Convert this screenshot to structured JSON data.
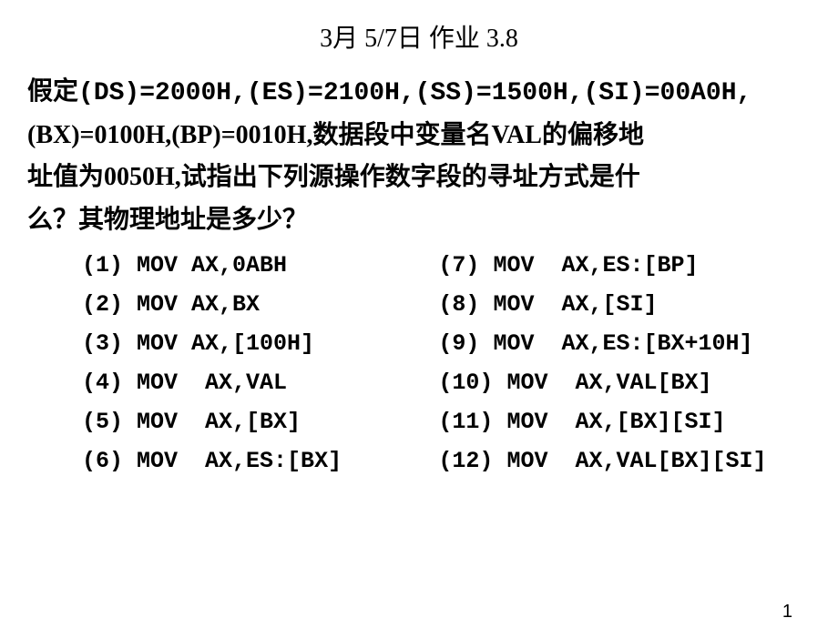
{
  "title": "3月 5/7日 作业 3.8",
  "problem": {
    "line1_prefix": "假定",
    "regs": "(DS)=2000H,(ES)=2100H,(SS)=1500H,(SI)=00A0H,",
    "line2": "(BX)=0100H,(BP)=0010H,数据段中变量名VAL的偏移地",
    "line3": "址值为0050H,试指出下列源操作数字段的寻址方式是什",
    "line4": "么？其物理地址是多少？"
  },
  "questions": [
    {
      "n": "(1)",
      "text": "MOV AX,0ABH"
    },
    {
      "n": "(2)",
      "text": "MOV AX,BX"
    },
    {
      "n": "(3)",
      "text": "MOV AX,[100H]"
    },
    {
      "n": "(4)",
      "text": "MOV  AX,VAL"
    },
    {
      "n": "(5)",
      "text": "MOV  AX,[BX]"
    },
    {
      "n": "(6)",
      "text": "MOV  AX,ES:[BX]"
    },
    {
      "n": "(7)",
      "text": "MOV  AX,ES:[BP]"
    },
    {
      "n": "(8)",
      "text": "MOV  AX,[SI]"
    },
    {
      "n": "(9)",
      "text": "MOV  AX,ES:[BX+10H]"
    },
    {
      "n": "(10)",
      "text": "MOV  AX,VAL[BX]"
    },
    {
      "n": "(11)",
      "text": "MOV  AX,[BX][SI]"
    },
    {
      "n": "(12)",
      "text": "MOV  AX,VAL[BX][SI]"
    }
  ],
  "page_number": "1",
  "colors": {
    "background": "#ffffff",
    "text": "#000000"
  },
  "typography": {
    "title_fontsize": 28,
    "body_fontsize": 28,
    "question_fontsize": 25,
    "page_num_fontsize": 20
  }
}
